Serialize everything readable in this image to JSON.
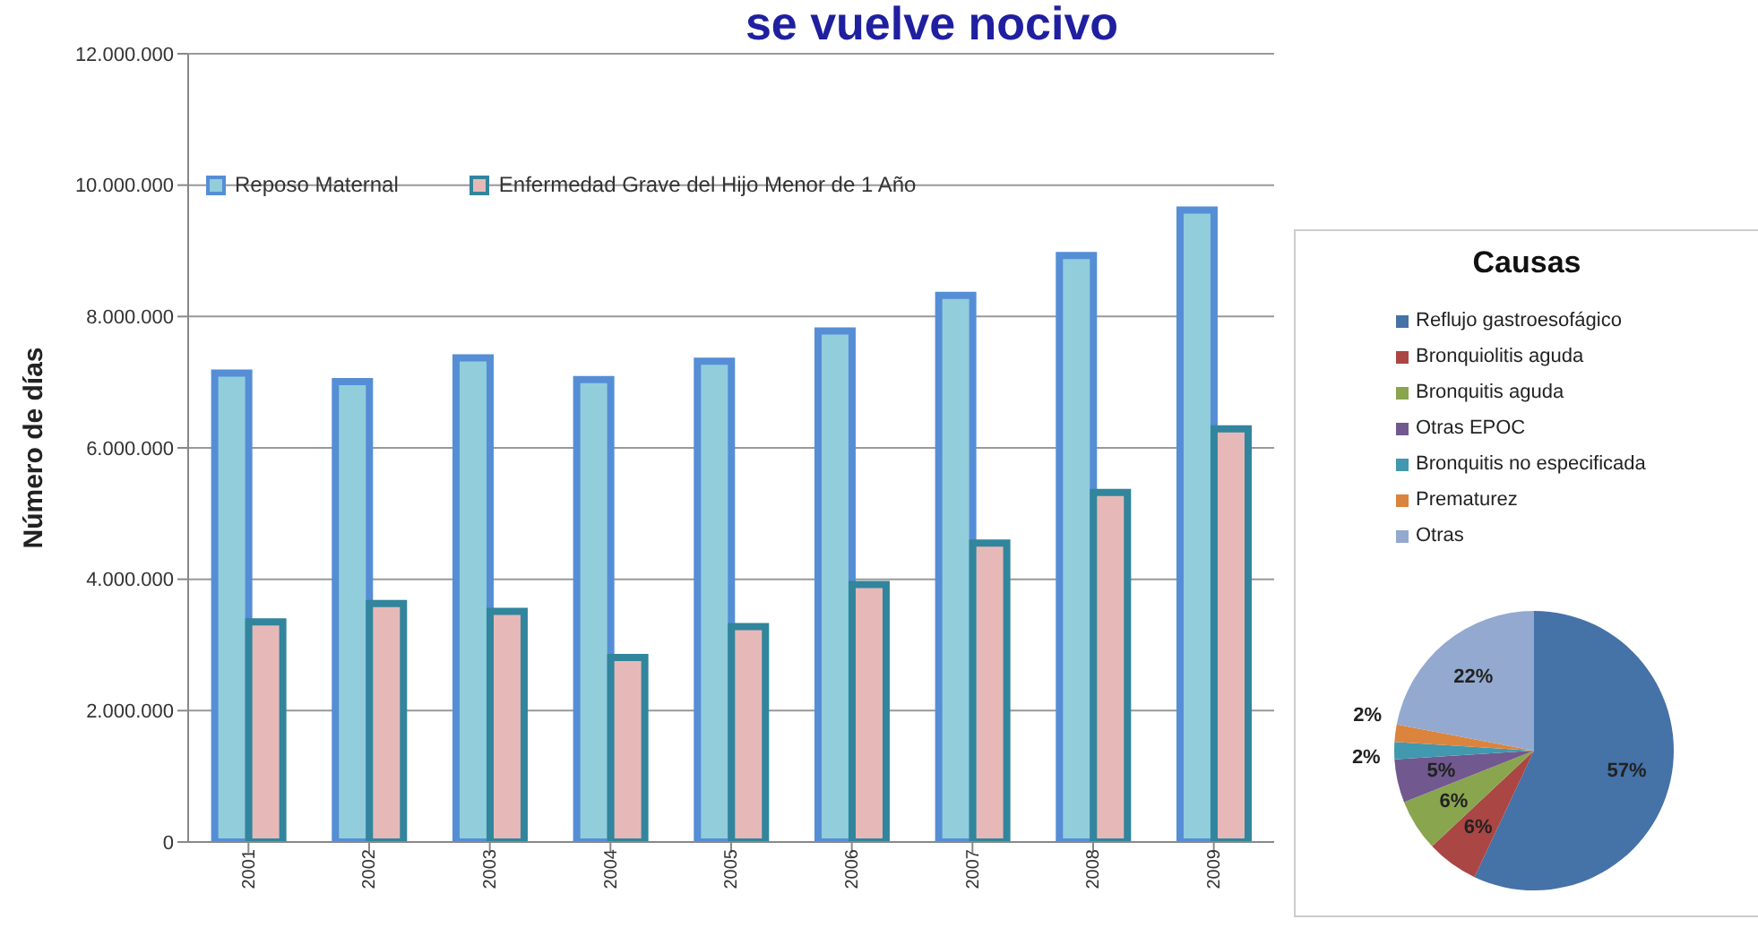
{
  "chart_data": [
    {
      "type": "bar",
      "title": "se vuelve nocivo",
      "ylabel": "Número de días",
      "categories": [
        "2001",
        "2002",
        "2003",
        "2004",
        "2005",
        "2006",
        "2007",
        "2008",
        "2009"
      ],
      "series": [
        {
          "name": "Reposo Maternal",
          "color": "#92cddc",
          "values": [
            7140000,
            7010000,
            7370000,
            7040000,
            7320000,
            7780000,
            8320000,
            8930000,
            9620000
          ]
        },
        {
          "name": "Enfermedad Grave del Hijo Menor de 1 Año",
          "color": "#e6b9b8",
          "values": [
            3350000,
            3630000,
            3510000,
            2810000,
            3280000,
            3920000,
            4550000,
            5320000,
            6290000
          ]
        }
      ],
      "ylim": [
        0,
        12000000
      ],
      "yticks": [
        0,
        {
          "value": 2000000,
          "label": "2.000.000"
        },
        {
          "value": 4000000,
          "label": "4.000.000"
        },
        {
          "value": 6000000,
          "label": "6.000.000"
        },
        {
          "value": 8000000,
          "label": "8.000.000"
        },
        {
          "value": 10000000,
          "label": "10.000.000"
        },
        {
          "value": 12000000,
          "label": "12.000.000"
        }
      ],
      "grid": "y",
      "legend": "top left"
    },
    {
      "type": "pie",
      "title": "Causas",
      "categories": [
        "Reflujo gastroesofágico",
        "Bronquiolitis aguda",
        "Bronquitis aguda",
        "Otras EPOC",
        "Bronquitis no especificada",
        "Prematurez",
        "Otras"
      ],
      "values": [
        57,
        6,
        6,
        5,
        2,
        2,
        22
      ],
      "colors": [
        "#4572a7",
        "#aa4643",
        "#89a54e",
        "#71588f",
        "#4198af",
        "#db843d",
        "#93a9cf"
      ],
      "value_labels": [
        "57%",
        "6%",
        "6%",
        "5%",
        "2%",
        "2%",
        "22%"
      ],
      "legend": "top"
    }
  ]
}
